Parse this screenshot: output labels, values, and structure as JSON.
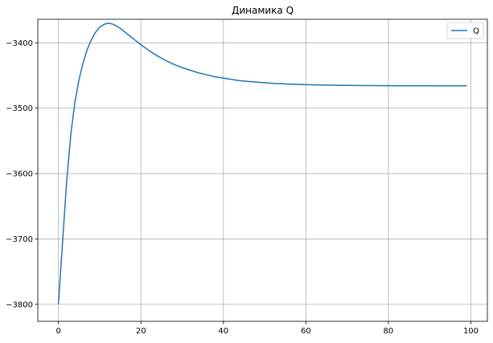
{
  "chart_data": {
    "type": "line",
    "title": "Динамика Q",
    "xlabel": "",
    "ylabel": "",
    "xlim": [
      -5,
      104
    ],
    "ylim": [
      -3826,
      -3364
    ],
    "x_ticks": [
      0,
      20,
      40,
      60,
      80,
      100
    ],
    "y_ticks": [
      -3800,
      -3700,
      -3600,
      -3500,
      -3400
    ],
    "x_tick_labels": [
      "0",
      "20",
      "40",
      "60",
      "80",
      "100"
    ],
    "y_tick_labels": [
      "−3800",
      "−3700",
      "−3600",
      "−3500",
      "−3400"
    ],
    "grid": true,
    "legend_position": "top-right",
    "series": [
      {
        "name": "Q",
        "color": "#1f77b4",
        "x": [
          0,
          1,
          2,
          3,
          4,
          5,
          6,
          7,
          8,
          9,
          10,
          11,
          12,
          13,
          14,
          15,
          16,
          17,
          18,
          19,
          20,
          22,
          24,
          26,
          28,
          30,
          32,
          34,
          36,
          38,
          40,
          42,
          44,
          46,
          48,
          50,
          52,
          54,
          56,
          58,
          60,
          62,
          64,
          66,
          68,
          70,
          72,
          74,
          76,
          78,
          80,
          82,
          84,
          86,
          88,
          90,
          92,
          94,
          96,
          98,
          99
        ],
        "y": [
          -3800,
          -3705,
          -3612,
          -3540,
          -3491,
          -3456,
          -3430,
          -3410,
          -3395,
          -3384,
          -3376,
          -3372,
          -3370,
          -3371,
          -3374,
          -3378,
          -3383,
          -3388,
          -3393,
          -3398,
          -3403,
          -3412,
          -3420,
          -3427,
          -3433,
          -3438,
          -3442,
          -3446,
          -3449,
          -3452,
          -3454,
          -3456,
          -3458,
          -3459,
          -3460,
          -3461,
          -3462,
          -3462.6,
          -3463.2,
          -3463.6,
          -3464,
          -3464.3,
          -3464.6,
          -3464.8,
          -3465,
          -3465.1,
          -3465.2,
          -3465.3,
          -3465.4,
          -3465.5,
          -3465.5,
          -3465.6,
          -3465.6,
          -3465.7,
          -3465.7,
          -3465.7,
          -3465.8,
          -3465.8,
          -3465.8,
          -3465.8,
          -3465.8
        ]
      }
    ]
  }
}
